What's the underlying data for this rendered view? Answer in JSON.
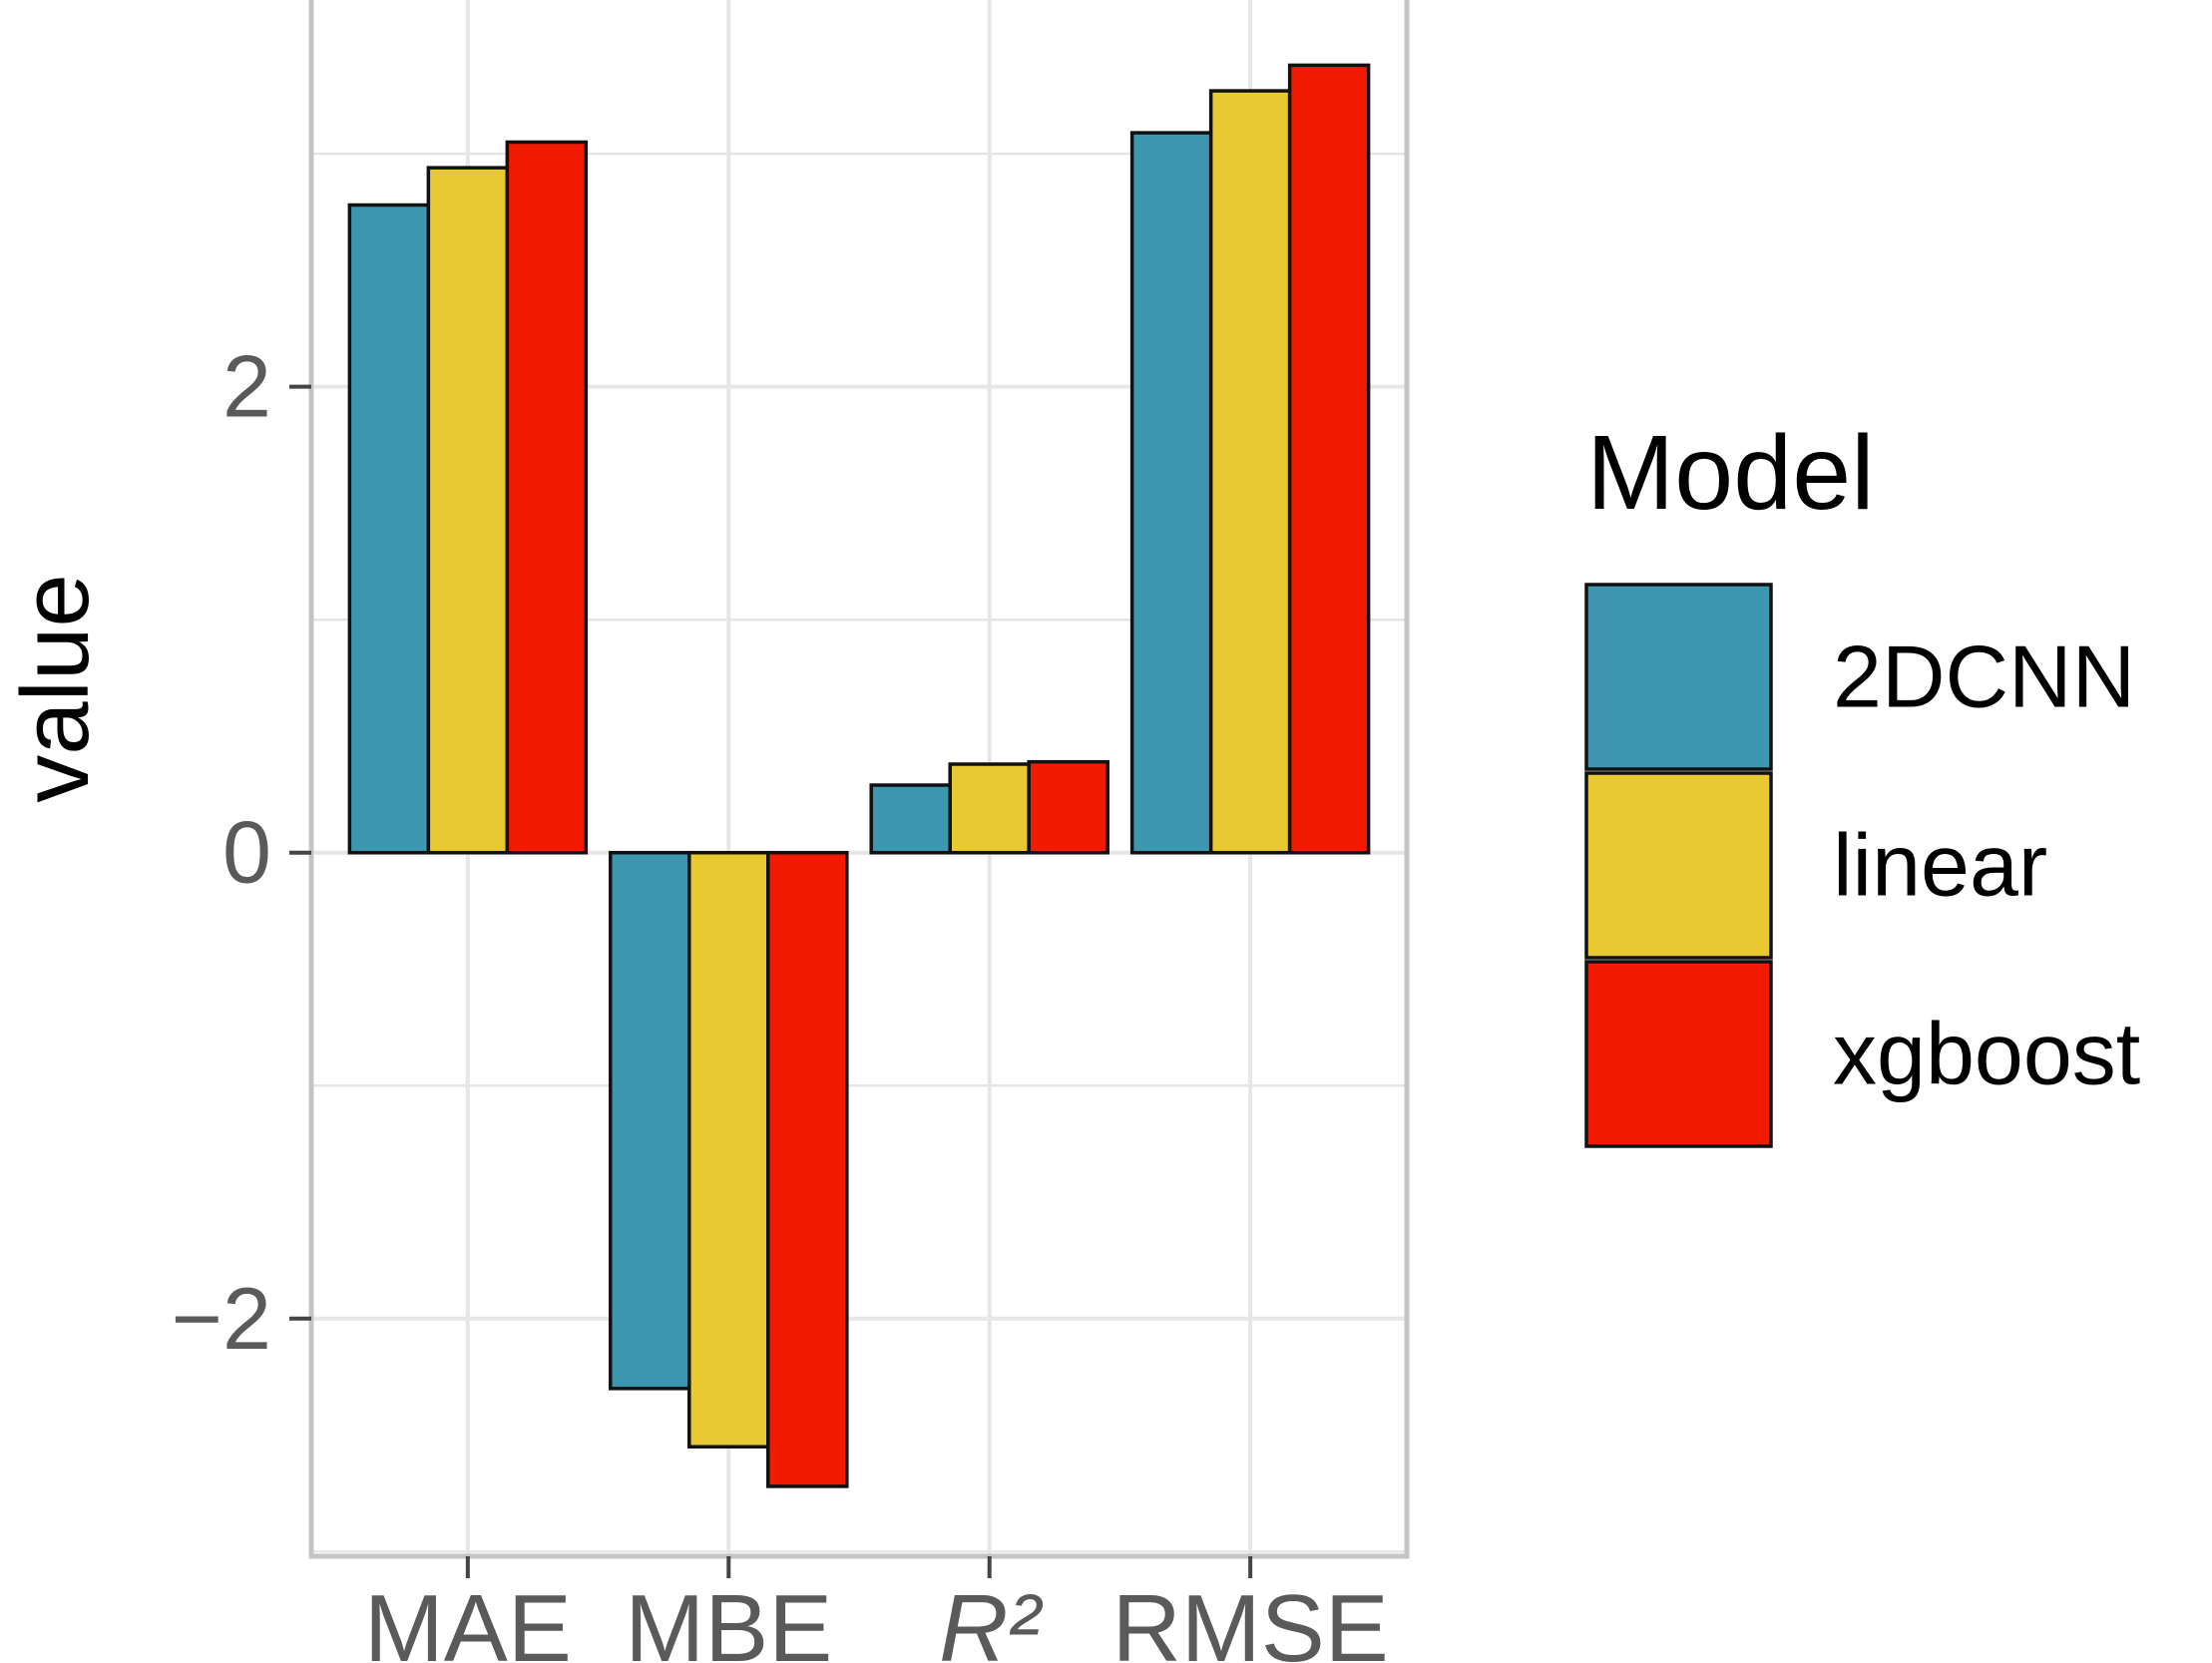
{
  "chart_data": {
    "type": "bar",
    "categories": [
      "MAE",
      "MBE",
      "R²",
      "RMSE"
    ],
    "series": [
      {
        "name": "2DCNN",
        "values": [
          2.78,
          -2.3,
          0.29,
          3.09
        ]
      },
      {
        "name": "linear",
        "values": [
          2.94,
          -2.55,
          0.38,
          3.27
        ]
      },
      {
        "name": "xgboost",
        "values": [
          3.05,
          -2.72,
          0.39,
          3.38
        ]
      }
    ],
    "colors": [
      "#3d97b0",
      "#e8c931",
      "#f21a00"
    ],
    "ylabel": "value",
    "xlabel": "",
    "yticks": [
      -2,
      0,
      2
    ],
    "ytick_labels": [
      "−2",
      "0",
      "2"
    ],
    "ylim": [
      -3.02,
      3.66
    ],
    "grid": true,
    "legend": {
      "title": "Model",
      "position": "right"
    }
  }
}
